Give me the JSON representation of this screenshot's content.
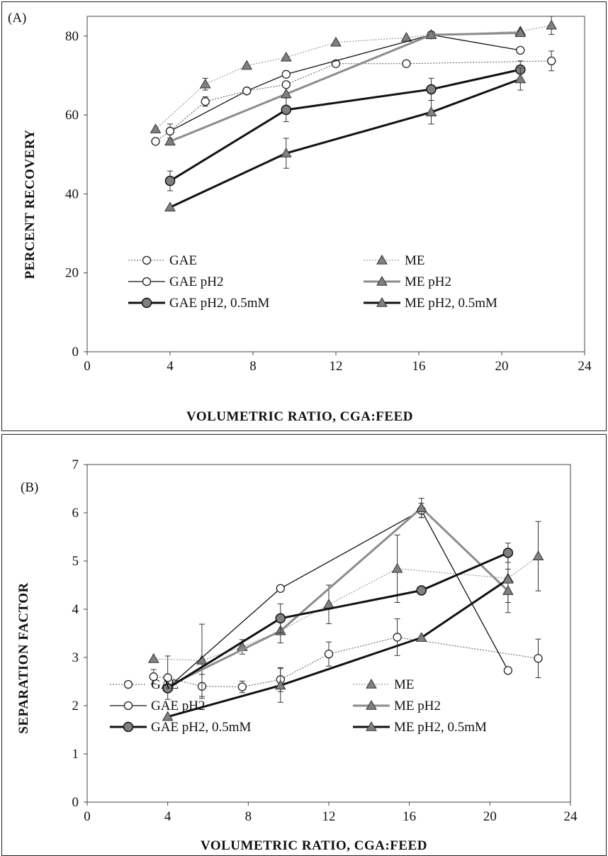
{
  "chart_data": [
    {
      "type": "line",
      "panel_label": "(A)",
      "xlabel": "VOLUMETRIC RATIO, CGA:FEED",
      "ylabel": "PERCENT RECOVERY",
      "xlim": [
        0,
        24
      ],
      "ylim": [
        0,
        85
      ],
      "xticks": [
        0,
        4,
        8,
        12,
        16,
        20,
        24
      ],
      "yticks": [
        0,
        20,
        40,
        60,
        80
      ],
      "grid": false,
      "legend": "bottom, two columns",
      "series": [
        {
          "name": "GAE",
          "style": {
            "marker": "circle-open",
            "line": "dotted",
            "color": "#555555",
            "width": 1
          },
          "x": [
            3.3,
            4.0,
            5.7,
            7.7,
            9.6,
            12.0,
            15.4,
            22.4
          ],
          "y": [
            53.3,
            55.9,
            63.4,
            66.1,
            67.7,
            73.0,
            73.0,
            73.7
          ],
          "err": [
            0,
            0,
            1.2,
            0,
            0,
            0,
            0,
            2.5
          ]
        },
        {
          "name": "ME",
          "style": {
            "marker": "triangle-filled",
            "line": "dotted",
            "color": "#888888",
            "width": 1
          },
          "x": [
            3.3,
            5.7,
            7.7,
            9.6,
            12.0,
            15.4,
            16.6,
            20.9,
            22.4
          ],
          "y": [
            56.4,
            67.8,
            72.5,
            74.6,
            78.4,
            79.6,
            80.3,
            81.2,
            82.7
          ],
          "err": [
            0,
            1.5,
            0,
            0,
            0,
            0,
            0,
            0,
            2.3
          ]
        },
        {
          "name": "GAE pH2",
          "style": {
            "marker": "circle-open",
            "line": "solid",
            "color": "#111111",
            "width": 1.3
          },
          "x": [
            4.0,
            7.7,
            9.6,
            16.6,
            20.9
          ],
          "y": [
            55.9,
            66.1,
            70.3,
            80.3,
            76.4
          ],
          "err": [
            1.8,
            0,
            0,
            0,
            0
          ]
        },
        {
          "name": "ME pH2",
          "style": {
            "marker": "triangle-filled",
            "line": "solid",
            "color": "#8c8c8c",
            "width": 3
          },
          "x": [
            4.0,
            9.6,
            16.6,
            20.9
          ],
          "y": [
            53.3,
            65.3,
            80.3,
            80.8
          ],
          "err": [
            0,
            0,
            0,
            0
          ]
        },
        {
          "name": "GAE pH2, 0.5mM",
          "style": {
            "marker": "circle-filled",
            "line": "solid",
            "color": "#111111",
            "width": 3
          },
          "x": [
            4.0,
            9.6,
            16.6,
            20.9
          ],
          "y": [
            43.3,
            61.3,
            66.5,
            71.5
          ],
          "err": [
            2.5,
            3.0,
            2.8,
            2.2
          ]
        },
        {
          "name": "ME pH2, 0.5mM",
          "style": {
            "marker": "triangle-filled",
            "line": "solid",
            "color": "#111111",
            "width": 3
          },
          "x": [
            4.0,
            9.6,
            16.6,
            20.9
          ],
          "y": [
            36.6,
            50.3,
            60.7,
            69.1
          ],
          "err": [
            0,
            3.8,
            3.0,
            2.8
          ]
        }
      ]
    },
    {
      "type": "line",
      "panel_label": "(B)",
      "xlabel": "VOLUMETRIC RATIO, CGA:FEED",
      "ylabel": "SEPARATION FACTOR",
      "xlim": [
        0,
        24
      ],
      "ylim": [
        0,
        7
      ],
      "xticks": [
        0,
        4,
        8,
        12,
        16,
        20,
        24
      ],
      "yticks": [
        0,
        1,
        2,
        3,
        4,
        5,
        6,
        7
      ],
      "grid": false,
      "legend": "bottom, two columns",
      "series": [
        {
          "name": "GAE",
          "style": {
            "marker": "circle-open",
            "line": "dotted",
            "color": "#555555",
            "width": 1
          },
          "x": [
            3.3,
            4.0,
            5.7,
            7.7,
            9.6,
            12.0,
            15.4,
            22.4
          ],
          "y": [
            2.6,
            2.58,
            2.4,
            2.39,
            2.54,
            3.07,
            3.42,
            2.98
          ],
          "err": [
            0.15,
            0.45,
            0.25,
            0.12,
            0.25,
            0.25,
            0.38,
            0.4
          ]
        },
        {
          "name": "ME",
          "style": {
            "marker": "triangle-filled",
            "line": "dotted",
            "color": "#888888",
            "width": 1
          },
          "x": [
            3.3,
            5.7,
            7.7,
            9.6,
            12.0,
            15.4,
            20.9,
            22.4
          ],
          "y": [
            2.97,
            2.94,
            3.22,
            3.55,
            4.1,
            4.84,
            4.64,
            5.1
          ],
          "err": [
            0,
            0.75,
            0.15,
            0.25,
            0.4,
            0.7,
            0.5,
            0.72
          ]
        },
        {
          "name": "GAE pH2",
          "style": {
            "marker": "circle-open",
            "line": "solid",
            "color": "#111111",
            "width": 1.3
          },
          "x": [
            4.0,
            9.6,
            16.6,
            20.9
          ],
          "y": [
            2.37,
            4.43,
            6.05,
            2.73
          ],
          "err": [
            0,
            0,
            0.15,
            0
          ]
        },
        {
          "name": "ME pH2",
          "style": {
            "marker": "triangle-filled",
            "line": "solid",
            "color": "#8c8c8c",
            "width": 3
          },
          "x": [
            4.0,
            9.6,
            16.6,
            20.9
          ],
          "y": [
            2.4,
            3.55,
            6.1,
            4.38
          ],
          "err": [
            0,
            0,
            0.2,
            0.45
          ]
        },
        {
          "name": "GAE pH2, 0.5mM",
          "style": {
            "marker": "circle-filled",
            "line": "solid",
            "color": "#111111",
            "width": 3
          },
          "x": [
            4.0,
            9.6,
            16.6,
            20.9
          ],
          "y": [
            2.36,
            3.81,
            4.39,
            5.17
          ],
          "err": [
            0,
            0.3,
            0,
            0.2
          ]
        },
        {
          "name": "ME pH2, 0.5mM",
          "style": {
            "marker": "triangle-filled",
            "line": "solid",
            "color": "#111111",
            "width": 3
          },
          "x": [
            4.0,
            9.6,
            16.6,
            20.9
          ],
          "y": [
            1.77,
            2.42,
            3.41,
            4.62
          ],
          "err": [
            0,
            0.35,
            0,
            0
          ]
        }
      ]
    }
  ]
}
